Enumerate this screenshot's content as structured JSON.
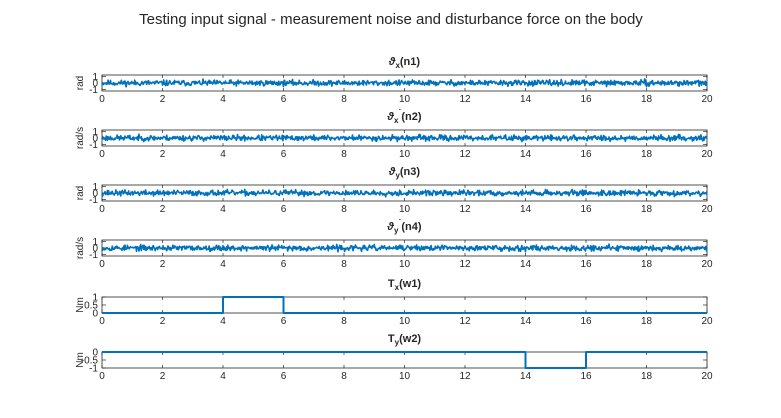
{
  "figure": {
    "title": "Testing input signal - measurement noise and disturbance force on the body",
    "line_color": "#0072BD"
  },
  "chart_data": [
    {
      "type": "line",
      "title": "ϑx(n1)",
      "title_parts": {
        "symbol": "ϑ",
        "sub": "x",
        "sup": "",
        "suffix": "(n1)"
      },
      "xlabel": "",
      "ylabel": "rad",
      "xlim": [
        0,
        20
      ],
      "ylim": [
        -1.2,
        1.2
      ],
      "xticks": [
        0,
        2,
        4,
        6,
        8,
        10,
        12,
        14,
        16,
        18,
        20
      ],
      "yticks": [
        -1,
        0,
        1
      ],
      "yticklabels": [
        "-1",
        "0",
        "1"
      ],
      "signal": "random noise, amplitude about ±0.5, sampled every 0.02",
      "noise_amplitude": 0.5,
      "noise_step": 0.02,
      "seed": 11
    },
    {
      "type": "line",
      "title": "ϑx˙(n2)",
      "title_parts": {
        "symbol": "ϑ",
        "sub": "x",
        "sup": "˙",
        "suffix": "(n2)"
      },
      "xlabel": "",
      "ylabel": "rad/s",
      "xlim": [
        0,
        20
      ],
      "ylim": [
        -1.2,
        1.2
      ],
      "xticks": [
        0,
        2,
        4,
        6,
        8,
        10,
        12,
        14,
        16,
        18,
        20
      ],
      "yticks": [
        -1,
        0,
        1
      ],
      "yticklabels": [
        "-1",
        "0",
        "1"
      ],
      "signal": "random noise, amplitude about ±0.5, sampled every 0.02",
      "noise_amplitude": 0.5,
      "noise_step": 0.02,
      "seed": 23
    },
    {
      "type": "line",
      "title": "ϑy(n3)",
      "title_parts": {
        "symbol": "ϑ",
        "sub": "y",
        "sup": "",
        "suffix": "(n3)"
      },
      "xlabel": "",
      "ylabel": "rad",
      "xlim": [
        0,
        20
      ],
      "ylim": [
        -1.2,
        1.2
      ],
      "xticks": [
        0,
        2,
        4,
        6,
        8,
        10,
        12,
        14,
        16,
        18,
        20
      ],
      "yticks": [
        -1,
        0,
        1
      ],
      "yticklabels": [
        "-1",
        "0",
        "1"
      ],
      "signal": "random noise, amplitude about ±0.5, sampled every 0.02",
      "noise_amplitude": 0.5,
      "noise_step": 0.02,
      "seed": 37
    },
    {
      "type": "line",
      "title": "ϑy˙(n4)",
      "title_parts": {
        "symbol": "ϑ",
        "sub": "y",
        "sup": "˙",
        "suffix": "(n4)"
      },
      "xlabel": "",
      "ylabel": "rad/s",
      "xlim": [
        0,
        20
      ],
      "ylim": [
        -1.2,
        1.2
      ],
      "xticks": [
        0,
        2,
        4,
        6,
        8,
        10,
        12,
        14,
        16,
        18,
        20
      ],
      "yticks": [
        -1,
        0,
        1
      ],
      "yticklabels": [
        "-1",
        "0",
        "1"
      ],
      "signal": "random noise, amplitude about ±0.5, sampled every 0.02",
      "noise_amplitude": 0.5,
      "noise_step": 0.02,
      "seed": 53
    },
    {
      "type": "line",
      "title": "Tx(w1)",
      "title_parts": {
        "symbol": "T",
        "sub": "x",
        "sup": "",
        "suffix": "(w1)"
      },
      "xlabel": "",
      "ylabel": "Nm",
      "xlim": [
        0,
        20
      ],
      "ylim": [
        0,
        1
      ],
      "xticks": [
        0,
        2,
        4,
        6,
        8,
        10,
        12,
        14,
        16,
        18,
        20
      ],
      "yticks": [
        0,
        0.5,
        1
      ],
      "yticklabels": [
        "0",
        "0.5",
        "1"
      ],
      "x": [
        0,
        4,
        4,
        6,
        6,
        20
      ],
      "y": [
        0,
        0,
        1,
        1,
        0,
        0
      ]
    },
    {
      "type": "line",
      "title": "Ty(w2)",
      "title_parts": {
        "symbol": "T",
        "sub": "y",
        "sup": "",
        "suffix": "(w2)"
      },
      "xlabel": "",
      "ylabel": "Nm",
      "xlim": [
        0,
        20
      ],
      "ylim": [
        -1,
        0
      ],
      "xticks": [
        0,
        2,
        4,
        6,
        8,
        10,
        12,
        14,
        16,
        18,
        20
      ],
      "yticks": [
        -1,
        -0.5,
        0
      ],
      "yticklabels": [
        "-1",
        "-0.5",
        "0"
      ],
      "x": [
        0,
        14,
        14,
        16,
        16,
        20
      ],
      "y": [
        0,
        0,
        -1,
        -1,
        0,
        0
      ]
    }
  ]
}
